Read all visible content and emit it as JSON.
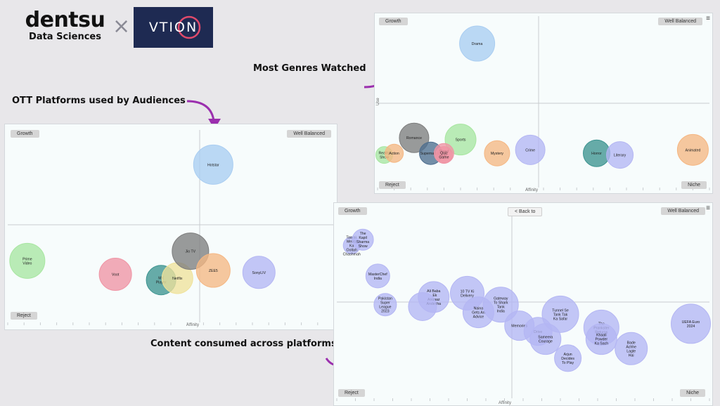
{
  "logo": {
    "brand": "dentsu",
    "sub": "Data Sciences",
    "separator": "×",
    "partner": "VTION"
  },
  "callouts": {
    "platforms": "OTT Platforms used by Audiences",
    "genres": "Most Genres Watched",
    "content": "Content consumed across platforms"
  },
  "colors": {
    "arrow": "#9b2fae",
    "gridline": "#c8cccf",
    "panel_bg": "#f7fcfc"
  },
  "icons": {
    "hamburger": "menu-icon",
    "back_arrow": "back-arrow-icon"
  },
  "chart_data": [
    {
      "id": "platforms",
      "type": "scatter",
      "quadrants": {
        "top_left": "Growth",
        "top_right": "Well Balanced",
        "bottom_left": "Reject"
      },
      "xlabel": "Affinity",
      "ylabel": "",
      "xlim": [
        0,
        100
      ],
      "ylim": [
        0,
        100
      ],
      "grid": true,
      "points": [
        {
          "label": "Hotstar",
          "x": 63,
          "y": 82,
          "r": 28,
          "color": "#a9cdf1"
        },
        {
          "label": "Prime Video",
          "x": 6,
          "y": 32,
          "r": 25,
          "color": "#a8e6a1"
        },
        {
          "label": "Voot",
          "x": 33,
          "y": 25,
          "r": 23,
          "color": "#ef94a4"
        },
        {
          "label": "MX Player",
          "x": 47,
          "y": 22,
          "r": 21,
          "color": "#3d9490"
        },
        {
          "label": "Netflix",
          "x": 52,
          "y": 23,
          "r": 22,
          "color": "#efe29b"
        },
        {
          "label": "Jio TV",
          "x": 56,
          "y": 37,
          "r": 26,
          "color": "#7d7d7d"
        },
        {
          "label": "ZEE5",
          "x": 63,
          "y": 27,
          "r": 24,
          "color": "#f5b783"
        },
        {
          "label": "SonyLIV",
          "x": 77,
          "y": 26,
          "r": 23,
          "color": "#b4b6f3"
        }
      ]
    },
    {
      "id": "genres",
      "type": "scatter",
      "quadrants": {
        "top_left": "Growth",
        "top_right": "Well Balanced",
        "bottom_left": "Reject",
        "bottom_right": "Niche"
      },
      "xlabel": "Affinity",
      "ylabel": "Use",
      "xlim": [
        0,
        100
      ],
      "ylim": [
        0,
        100
      ],
      "grid": true,
      "points": [
        {
          "label": "Drama",
          "x": 30,
          "y": 84,
          "r": 25,
          "color": "#a9cdf1"
        },
        {
          "label": "Sports",
          "x": 25,
          "y": 28,
          "r": 22,
          "color": "#a8e6a1"
        },
        {
          "label": "Romance",
          "x": 11,
          "y": 29,
          "r": 21,
          "color": "#7d7d7d"
        },
        {
          "label": "Reality Show",
          "x": 2,
          "y": 19,
          "r": 12,
          "color": "#a8e6a1"
        },
        {
          "label": "Action",
          "x": 5,
          "y": 20,
          "r": 13,
          "color": "#f5b783"
        },
        {
          "label": "Supernatural",
          "x": 16,
          "y": 20,
          "r": 16,
          "color": "#4e6e8e"
        },
        {
          "label": "Stand Up",
          "x": 20,
          "y": 20,
          "r": 14,
          "color": "#ef94a4"
        },
        {
          "label": "Quiz Game",
          "x": 20,
          "y": 19,
          "r": 12,
          "color": "#ef94a4"
        },
        {
          "label": "Mystery",
          "x": 36,
          "y": 20,
          "r": 18,
          "color": "#f5b783"
        },
        {
          "label": "Crime",
          "x": 46,
          "y": 22,
          "r": 21,
          "color": "#b4b6f3"
        },
        {
          "label": "Horror",
          "x": 66,
          "y": 20,
          "r": 19,
          "color": "#3d9490"
        },
        {
          "label": "Literary",
          "x": 73,
          "y": 19,
          "r": 19,
          "color": "#b4b6f3"
        },
        {
          "label": "Animated",
          "x": 95,
          "y": 22,
          "r": 22,
          "color": "#f5b783"
        }
      ]
    },
    {
      "id": "content",
      "type": "scatter",
      "back_label": "Back to",
      "quadrants": {
        "top_left": "Growth",
        "top_right": "Well Balanced",
        "bottom_left": "Reject",
        "bottom_right": "Niche"
      },
      "xlabel": "Affinity",
      "ylabel": "",
      "xlim": [
        0,
        100
      ],
      "ylim": [
        0,
        100
      ],
      "grid": true,
      "points": [
        {
          "label": "Taarak Mehta Ka Ooltah Chashmah",
          "x": 4,
          "y": 80,
          "r": 12,
          "color": "#b4b6f3"
        },
        {
          "label": "The Kapil Sharma Show",
          "x": 7,
          "y": 83,
          "r": 15,
          "color": "#b4b6f3"
        },
        {
          "label": "MasterChef India",
          "x": 11,
          "y": 64,
          "r": 17,
          "color": "#b4b6f3"
        },
        {
          "label": "Pakistan Super League 2023",
          "x": 13,
          "y": 49,
          "r": 16,
          "color": "#b4b6f3"
        },
        {
          "label": "Ali Baba - Ek Andaaz Andekha",
          "x": 26,
          "y": 53,
          "r": 22,
          "color": "#b4b6f3"
        },
        {
          "label": "",
          "x": 23,
          "y": 48,
          "r": 20,
          "color": "#b4b6f3"
        },
        {
          "label": "10 TV Ki Delivery",
          "x": 35,
          "y": 55,
          "r": 24,
          "color": "#b4b6f3"
        },
        {
          "label": "Naina Gets An Advice",
          "x": 38,
          "y": 45,
          "r": 22,
          "color": "#b4b6f3"
        },
        {
          "label": "Gateway To Shark Tank India",
          "x": 44,
          "y": 49,
          "r": 25,
          "color": "#b4b6f3"
        },
        {
          "label": "Memories",
          "x": 49,
          "y": 38,
          "r": 21,
          "color": "#b4b6f3"
        },
        {
          "label": "Drive",
          "x": 54,
          "y": 35,
          "r": 20,
          "color": "#b4b6f3"
        },
        {
          "label": "Sameera Courage",
          "x": 56,
          "y": 31,
          "r": 22,
          "color": "#b4b6f3"
        },
        {
          "label": "Tunnel Se Tank Tak Ka Safar",
          "x": 60,
          "y": 44,
          "r": 26,
          "color": "#b4b6f3"
        },
        {
          "label": "Arjun Decides To Play",
          "x": 62,
          "y": 21,
          "r": 19,
          "color": "#b4b6f3"
        },
        {
          "label": "The Prankster Returns",
          "x": 71,
          "y": 37,
          "r": 25,
          "color": "#b4b6f3"
        },
        {
          "label": "Khaali Powder Ka Sach",
          "x": 71,
          "y": 31,
          "r": 22,
          "color": "#b4b6f3"
        },
        {
          "label": "Bade Achhe Lagte Hai",
          "x": 79,
          "y": 26,
          "r": 23,
          "color": "#b4b6f3"
        },
        {
          "label": "UEFA Euro 2024",
          "x": 95,
          "y": 39,
          "r": 28,
          "color": "#b4b6f3"
        }
      ]
    }
  ]
}
